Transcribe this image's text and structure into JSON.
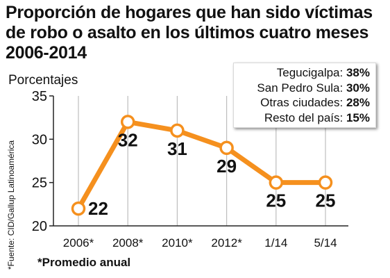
{
  "title_lines": [
    "Proporción de hogares que han sido víctimas",
    "de robo o asalto en los últimos cuatro meses",
    "2006-2014"
  ],
  "legend": [
    {
      "label": "Tegucigalpa:",
      "value": "38%"
    },
    {
      "label": "San Pedro Sula:",
      "value": "30%"
    },
    {
      "label": "Otras ciudades:",
      "value": "28%"
    },
    {
      "label": "Resto del país:",
      "value": "15%"
    }
  ],
  "note": "*Promedio anual",
  "source": "*Fuente: CID/Gallup Latinoamérica",
  "colors": {
    "line": "#f5901e",
    "marker_fill": "#ffffff",
    "grid": "#bdbdbd",
    "text": "#111111"
  },
  "chart_data": {
    "type": "line",
    "title": "Proporción de hogares que han sido víctimas de robo o asalto en los últimos cuatro meses 2006-2014",
    "ylabel": "Porcentajes",
    "xlabel": "",
    "categories": [
      "2006*",
      "2008*",
      "2010*",
      "2012*",
      "1/14",
      "5/14"
    ],
    "values": [
      22,
      32,
      31,
      29,
      25,
      25
    ],
    "data_labels": [
      "22",
      "32",
      "31",
      "29",
      "25",
      "25"
    ],
    "ylim": [
      20,
      35
    ],
    "yticks": [
      20,
      25,
      30,
      35
    ],
    "grid": "vertical"
  }
}
